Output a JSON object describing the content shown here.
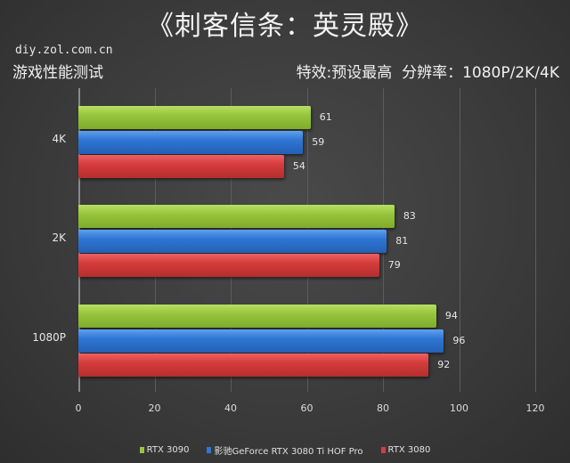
{
  "header": {
    "title": "《刺客信条：英灵殿》",
    "site": "diy.zol.com.cn",
    "subtitle": "游戏性能测试",
    "settings": "特效:预设最高  分辨率：1080P/2K/4K"
  },
  "chart_data": {
    "type": "bar",
    "orientation": "horizontal",
    "title": "《刺客信条：英灵殿》",
    "categories": [
      "4K",
      "2K",
      "1080P"
    ],
    "series": [
      {
        "name": "RTX 3090",
        "color": "#96c53c",
        "values": [
          61,
          83,
          94
        ]
      },
      {
        "name": "影驰GeForce RTX 3080 Ti HOF Pro",
        "color": "#2f76d4",
        "values": [
          59,
          81,
          96
        ]
      },
      {
        "name": "RTX 3080",
        "color": "#d63c3c",
        "values": [
          54,
          79,
          92
        ]
      }
    ],
    "xlim": [
      0,
      120
    ],
    "xticks": [
      "0",
      "20",
      "40",
      "60",
      "80",
      "100",
      "120"
    ],
    "grid": true,
    "legend_position": "bottom"
  }
}
